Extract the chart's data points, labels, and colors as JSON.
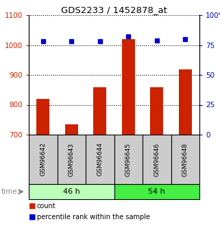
{
  "title": "GDS2233 / 1452878_at",
  "samples": [
    "GSM96642",
    "GSM96643",
    "GSM96644",
    "GSM96645",
    "GSM96646",
    "GSM96648"
  ],
  "counts": [
    820,
    735,
    858,
    1020,
    858,
    918
  ],
  "percentiles": [
    78,
    78,
    78,
    82,
    79,
    80
  ],
  "groups": [
    {
      "label": "46 h",
      "color_light": "#ccffcc",
      "color_dark": "#55ee55",
      "start": 0,
      "end": 2
    },
    {
      "label": "54 h",
      "color_light": "#55ee55",
      "color_dark": "#55ee55",
      "start": 3,
      "end": 5
    }
  ],
  "ylim_left": [
    700,
    1100
  ],
  "ylim_right": [
    0,
    100
  ],
  "yticks_left": [
    700,
    800,
    900,
    1000,
    1100
  ],
  "yticks_right": [
    0,
    25,
    50,
    75,
    100
  ],
  "bar_color": "#cc2200",
  "dot_color": "#0000cc",
  "bar_width": 0.45,
  "xticklabel_area_color": "#cccccc",
  "group_color_46": "#bbffbb",
  "group_color_54": "#44ee44",
  "time_label": "time",
  "legend_count_label": "count",
  "legend_pct_label": "percentile rank within the sample"
}
